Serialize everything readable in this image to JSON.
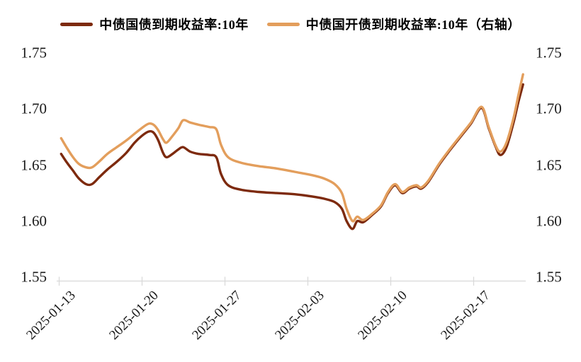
{
  "legend": [
    {
      "label": "中债国债到期收益率:10年",
      "color": "#7D2A0E"
    },
    {
      "label": "中债国开债到期收益率:10年（右轴）",
      "color": "#E39E5C"
    }
  ],
  "axes": {
    "y_left": [
      "1.75",
      "1.70",
      "1.65",
      "1.60",
      "1.55"
    ],
    "y_right": [
      "1.75",
      "1.70",
      "1.65",
      "1.60",
      "1.55"
    ],
    "x": [
      "2025-01-13",
      "2025-01-20",
      "2025-01-27",
      "2025-02-03",
      "2025-02-10",
      "2025-02-17"
    ]
  },
  "chart_data": {
    "type": "line",
    "title": "",
    "legend_position": "top",
    "grid": false,
    "background": "#ffffff",
    "axis_color": "#D9D9D9",
    "x_axis": {
      "unit": "days since 2025-01-13 (fractional = intraday)",
      "range_days": [
        0,
        39.4
      ],
      "tick_days": [
        0,
        7,
        14,
        21,
        28,
        35
      ],
      "tick_labels": [
        "2025-01-13",
        "2025-01-20",
        "2025-01-27",
        "2025-02-03",
        "2025-02-10",
        "2025-02-17"
      ]
    },
    "y_axis_left": {
      "range": [
        1.55,
        1.75
      ],
      "tick_step": 0.05
    },
    "y_axis_right": {
      "range": [
        1.55,
        1.75
      ],
      "tick_step": 0.05
    },
    "series": [
      {
        "name": "中债国债到期收益率:10年",
        "axis": "left",
        "color": "#7D2A0E",
        "points": [
          [
            0.2,
            1.66
          ],
          [
            0.7,
            1.652
          ],
          [
            1.2,
            1.645
          ],
          [
            1.7,
            1.638
          ],
          [
            2.3,
            1.633
          ],
          [
            2.8,
            1.633
          ],
          [
            3.4,
            1.639
          ],
          [
            4.1,
            1.646
          ],
          [
            4.9,
            1.653
          ],
          [
            5.7,
            1.661
          ],
          [
            6.4,
            1.67
          ],
          [
            7.0,
            1.676
          ],
          [
            7.6,
            1.68
          ],
          [
            8.0,
            1.679
          ],
          [
            8.4,
            1.672
          ],
          [
            8.8,
            1.661
          ],
          [
            9.1,
            1.657
          ],
          [
            9.6,
            1.66
          ],
          [
            10.1,
            1.664
          ],
          [
            10.5,
            1.666
          ],
          [
            11.1,
            1.662
          ],
          [
            11.8,
            1.66
          ],
          [
            12.7,
            1.659
          ],
          [
            13.3,
            1.657
          ],
          [
            13.7,
            1.642
          ],
          [
            14.3,
            1.632
          ],
          [
            15.4,
            1.628
          ],
          [
            16.9,
            1.626
          ],
          [
            18.4,
            1.625
          ],
          [
            19.9,
            1.624
          ],
          [
            21.4,
            1.622
          ],
          [
            22.4,
            1.62
          ],
          [
            23.3,
            1.617
          ],
          [
            23.9,
            1.611
          ],
          [
            24.3,
            1.6
          ],
          [
            24.8,
            1.593
          ],
          [
            25.2,
            1.6
          ],
          [
            25.7,
            1.599
          ],
          [
            26.4,
            1.605
          ],
          [
            27.2,
            1.613
          ],
          [
            27.8,
            1.625
          ],
          [
            28.4,
            1.632
          ],
          [
            29.0,
            1.625
          ],
          [
            29.6,
            1.629
          ],
          [
            30.2,
            1.631
          ],
          [
            30.6,
            1.629
          ],
          [
            31.2,
            1.635
          ],
          [
            32.1,
            1.65
          ],
          [
            33.0,
            1.663
          ],
          [
            33.9,
            1.675
          ],
          [
            34.8,
            1.687
          ],
          [
            35.7,
            1.701
          ],
          [
            36.3,
            1.683
          ],
          [
            36.9,
            1.666
          ],
          [
            37.3,
            1.659
          ],
          [
            37.8,
            1.666
          ],
          [
            38.4,
            1.688
          ],
          [
            38.8,
            1.706
          ],
          [
            39.2,
            1.722
          ]
        ]
      },
      {
        "name": "中债国开债到期收益率:10年（右轴）",
        "axis": "right",
        "color": "#E39E5C",
        "points": [
          [
            0.2,
            1.674
          ],
          [
            0.7,
            1.665
          ],
          [
            1.2,
            1.657
          ],
          [
            1.7,
            1.651
          ],
          [
            2.3,
            1.648
          ],
          [
            2.8,
            1.648
          ],
          [
            3.4,
            1.653
          ],
          [
            4.1,
            1.66
          ],
          [
            4.9,
            1.666
          ],
          [
            5.7,
            1.672
          ],
          [
            6.4,
            1.678
          ],
          [
            7.0,
            1.683
          ],
          [
            7.6,
            1.687
          ],
          [
            8.0,
            1.686
          ],
          [
            8.4,
            1.681
          ],
          [
            8.8,
            1.673
          ],
          [
            9.1,
            1.67
          ],
          [
            9.6,
            1.676
          ],
          [
            10.1,
            1.683
          ],
          [
            10.5,
            1.69
          ],
          [
            11.1,
            1.688
          ],
          [
            11.8,
            1.686
          ],
          [
            12.7,
            1.684
          ],
          [
            13.3,
            1.682
          ],
          [
            13.7,
            1.668
          ],
          [
            14.3,
            1.657
          ],
          [
            15.4,
            1.652
          ],
          [
            16.9,
            1.649
          ],
          [
            18.4,
            1.647
          ],
          [
            19.9,
            1.644
          ],
          [
            21.4,
            1.641
          ],
          [
            22.4,
            1.638
          ],
          [
            23.3,
            1.633
          ],
          [
            23.9,
            1.625
          ],
          [
            24.3,
            1.611
          ],
          [
            24.8,
            1.6
          ],
          [
            25.2,
            1.604
          ],
          [
            25.7,
            1.601
          ],
          [
            26.4,
            1.606
          ],
          [
            27.2,
            1.614
          ],
          [
            27.8,
            1.626
          ],
          [
            28.4,
            1.633
          ],
          [
            29.0,
            1.626
          ],
          [
            29.6,
            1.63
          ],
          [
            30.2,
            1.632
          ],
          [
            30.6,
            1.63
          ],
          [
            31.2,
            1.636
          ],
          [
            32.1,
            1.651
          ],
          [
            33.0,
            1.664
          ],
          [
            33.9,
            1.676
          ],
          [
            34.8,
            1.688
          ],
          [
            35.7,
            1.702
          ],
          [
            36.3,
            1.684
          ],
          [
            36.9,
            1.667
          ],
          [
            37.3,
            1.662
          ],
          [
            37.8,
            1.67
          ],
          [
            38.4,
            1.692
          ],
          [
            38.8,
            1.712
          ],
          [
            39.2,
            1.731
          ]
        ]
      }
    ]
  }
}
